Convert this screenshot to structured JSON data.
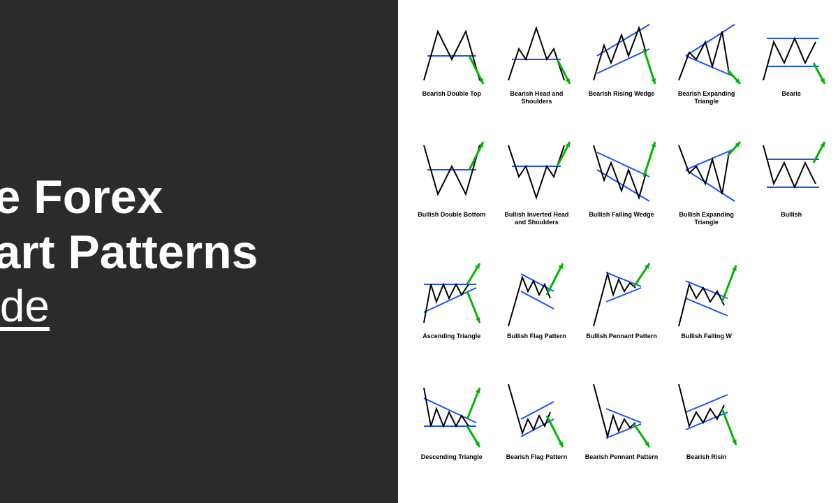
{
  "title": {
    "line1": "he Forex",
    "line2": "hart Patterns",
    "subtitle": "uide"
  },
  "colors": {
    "left_bg": "#2b2b2b",
    "text_white": "#ffffff",
    "page_bg": "#ffffff",
    "price_line": "#000000",
    "trend_line": "#1f4fff",
    "arrow_up": "#00b400",
    "arrow_down": "#00b400",
    "label": "#000000"
  },
  "stroke": {
    "price_w": 2,
    "trend_w": 2,
    "arrow_w": 3
  },
  "label_fontsize": 9,
  "patterns": [
    [
      {
        "label": "Bearish Double Top",
        "price": "10,90 30,20 50,60 70,20 90,90",
        "trends": [
          [
            15,
            55,
            85,
            55
          ]
        ],
        "arrow": [
          75,
          55,
          95,
          95
        ],
        "arrow_color": "down"
      },
      {
        "label": "Bearish Head and Shoulders",
        "price": "10,90 25,45 35,60 50,15 65,60 75,45 90,90",
        "trends": [
          [
            15,
            60,
            85,
            60
          ]
        ],
        "arrow": [
          80,
          60,
          98,
          95
        ],
        "arrow_color": "down"
      },
      {
        "label": "Bearish Rising Wedge",
        "price": "10,90 25,40 35,65 50,25 60,55 75,15 85,50",
        "trends": [
          [
            15,
            55,
            90,
            10
          ],
          [
            15,
            80,
            90,
            45
          ]
        ],
        "arrow": [
          82,
          45,
          98,
          95
        ],
        "arrow_color": "down"
      },
      {
        "label": "Bearish Expanding Triangle",
        "price": "10,90 25,50 35,60 48,35 58,70 72,20 82,80",
        "trends": [
          [
            20,
            55,
            90,
            10
          ],
          [
            20,
            55,
            90,
            85
          ]
        ],
        "arrow": [
          80,
          75,
          98,
          95
        ],
        "arrow_color": "down"
      },
      {
        "label": "Bearis",
        "price": "10,90 25,35 40,65 55,30 70,65 85,35",
        "trends": [
          [
            15,
            30,
            90,
            30
          ],
          [
            15,
            70,
            90,
            70
          ]
        ],
        "arrow": [
          82,
          65,
          98,
          95
        ],
        "arrow_color": "down"
      }
    ],
    [
      {
        "label": "Bullish Double Bottom",
        "price": "10,10 30,80 50,40 70,80 90,10",
        "trends": [
          [
            15,
            45,
            85,
            45
          ]
        ],
        "arrow": [
          75,
          45,
          95,
          5
        ],
        "arrow_color": "up"
      },
      {
        "label": "Bullish Inverted Head and Shoulders",
        "price": "10,10 25,55 35,40 50,85 65,40 75,55 90,10",
        "trends": [
          [
            15,
            40,
            85,
            40
          ]
        ],
        "arrow": [
          80,
          40,
          98,
          5
        ],
        "arrow_color": "up"
      },
      {
        "label": "Bullish Falling Wedge",
        "price": "10,10 25,60 35,35 50,75 60,45 75,85 85,50",
        "trends": [
          [
            15,
            45,
            90,
            90
          ],
          [
            15,
            20,
            90,
            55
          ]
        ],
        "arrow": [
          82,
          55,
          98,
          5
        ],
        "arrow_color": "up"
      },
      {
        "label": "Bullish Expanding Triangle",
        "price": "10,10 25,50 35,40 48,65 58,30 72,80 82,20",
        "trends": [
          [
            20,
            45,
            90,
            90
          ],
          [
            20,
            45,
            90,
            15
          ]
        ],
        "arrow": [
          80,
          25,
          98,
          5
        ],
        "arrow_color": "up"
      },
      {
        "label": "Bullish",
        "price": "10,10 25,65 40,35 55,70 70,35 85,65",
        "trends": [
          [
            15,
            70,
            90,
            70
          ],
          [
            15,
            30,
            90,
            30
          ]
        ],
        "arrow": [
          82,
          35,
          98,
          5
        ],
        "arrow_color": "up"
      }
    ],
    [
      {
        "label": "Ascending Triangle",
        "price": "10,90 20,35 28,60 38,35 46,55 56,35 64,50 74,35",
        "trends": [
          [
            10,
            35,
            85,
            35
          ],
          [
            10,
            75,
            85,
            40
          ]
        ],
        "arrow": [
          72,
          35,
          90,
          5
        ],
        "arrow_color": "up",
        "alt_arrow": [
          72,
          45,
          90,
          90
        ]
      },
      {
        "label": "Bullish Flag Pattern",
        "price": "10,95 30,25 38,45 46,30 54,50 62,35 70,55",
        "trends": [
          [
            28,
            20,
            75,
            45
          ],
          [
            28,
            45,
            75,
            70
          ]
        ],
        "arrow": [
          65,
          50,
          88,
          5
        ],
        "arrow_color": "up"
      },
      {
        "label": "Bullish Pennant Pattern",
        "price": "10,95 30,20 38,50 46,28 54,45 62,33 70,40",
        "trends": [
          [
            28,
            18,
            78,
            38
          ],
          [
            28,
            60,
            78,
            40
          ]
        ],
        "arrow": [
          68,
          38,
          90,
          5
        ],
        "arrow_color": "up"
      },
      {
        "label": "Bullish Falling W",
        "price": "10,95 25,35 35,55 45,40 55,60 65,45 75,65",
        "trends": [
          [
            20,
            30,
            80,
            55
          ],
          [
            20,
            55,
            80,
            80
          ]
        ],
        "arrow": [
          72,
          60,
          92,
          8
        ],
        "arrow_color": "up"
      },
      {
        "label": "",
        "price": "",
        "trends": [],
        "arrow": null
      }
    ],
    [
      {
        "label": "Descending Triangle",
        "price": "10,10 20,65 28,40 38,65 46,45 56,65 64,50 74,65",
        "trends": [
          [
            10,
            65,
            85,
            65
          ],
          [
            10,
            25,
            85,
            60
          ]
        ],
        "arrow": [
          72,
          65,
          90,
          95
        ],
        "arrow_color": "down",
        "alt_arrow": [
          72,
          55,
          90,
          10
        ]
      },
      {
        "label": "Bearish Flag Pattern",
        "price": "10,5 30,75 38,55 46,70 54,50 62,65 70,45",
        "trends": [
          [
            28,
            80,
            75,
            55
          ],
          [
            28,
            55,
            75,
            30
          ]
        ],
        "arrow": [
          65,
          50,
          88,
          95
        ],
        "arrow_color": "down"
      },
      {
        "label": "Bearish Pennant Pattern",
        "price": "10,5 30,80 38,50 46,72 54,55 62,67 70,60",
        "trends": [
          [
            28,
            82,
            78,
            62
          ],
          [
            28,
            40,
            78,
            60
          ]
        ],
        "arrow": [
          68,
          62,
          90,
          95
        ],
        "arrow_color": "down"
      },
      {
        "label": "Bearish Risin",
        "price": "10,5 25,65 35,45 45,60 55,40 65,55 75,35",
        "trends": [
          [
            20,
            70,
            80,
            45
          ],
          [
            20,
            45,
            80,
            20
          ]
        ],
        "arrow": [
          72,
          40,
          92,
          92
        ],
        "arrow_color": "down"
      },
      {
        "label": "",
        "price": "",
        "trends": [],
        "arrow": null
      }
    ]
  ]
}
